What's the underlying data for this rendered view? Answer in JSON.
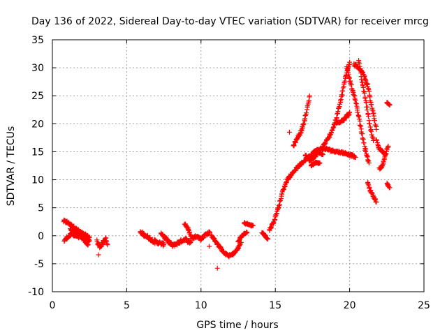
{
  "chart_data": {
    "type": "scatter",
    "title": "Day 136 of 2022, Sidereal Day-to-day VTEC variation (SDTVAR) for receiver mrcg",
    "xlabel": "GPS time / hours",
    "ylabel": "SDTVAR / TECUs",
    "xlim": [
      0,
      25
    ],
    "ylim": [
      -10,
      35
    ],
    "xticks": [
      0,
      5,
      10,
      15,
      20,
      25
    ],
    "yticks": [
      -10,
      -5,
      0,
      5,
      10,
      15,
      20,
      25,
      30,
      35
    ],
    "xtick_labels": [
      "0",
      "5",
      "10",
      "15",
      "20",
      "25"
    ],
    "ytick_labels": [
      "-10",
      "-5",
      "0",
      "5",
      "10",
      "15",
      "20",
      "25",
      "30",
      "35"
    ],
    "grid": true,
    "marker": "+",
    "marker_color": "#ff0000",
    "segments": [
      {
        "name": "arc-a",
        "x": [
          0.75,
          1.0,
          1.3,
          1.6,
          1.9,
          2.2,
          2.5
        ],
        "y": [
          2.6,
          2.4,
          1.8,
          1.2,
          0.6,
          0.1,
          -0.3
        ],
        "jitter": 0.5
      },
      {
        "name": "arc-a2",
        "x": [
          0.8,
          1.0,
          1.3,
          1.6,
          1.9,
          2.2,
          2.5
        ],
        "y": [
          -0.9,
          -0.3,
          0.3,
          0.0,
          -0.3,
          -0.6,
          -0.9
        ],
        "jitter": 0.5
      },
      {
        "name": "arc-a3",
        "x": [
          1.2,
          1.5,
          1.8,
          2.1,
          2.4
        ],
        "y": [
          1.2,
          0.8,
          0.4,
          -0.6,
          -1.6
        ],
        "jitter": 0.4
      },
      {
        "name": "arc-b",
        "x": [
          3.0,
          3.2,
          3.4,
          3.6,
          3.7
        ],
        "y": [
          -1.0,
          -2.0,
          -1.2,
          -0.6,
          -1.6
        ],
        "jitter": 0.6
      },
      {
        "name": "arc-c",
        "x": [
          5.9,
          6.3,
          6.7,
          7.1,
          7.5
        ],
        "y": [
          0.6,
          0.0,
          -0.8,
          -1.2,
          -1.6
        ],
        "jitter": 0.6
      },
      {
        "name": "arc-d",
        "x": [
          7.3,
          7.7,
          8.1,
          8.5,
          8.9,
          9.3
        ],
        "y": [
          0.6,
          -0.8,
          -1.8,
          -1.2,
          -0.6,
          -1.2
        ],
        "jitter": 0.6
      },
      {
        "name": "arc-e",
        "x": [
          8.9,
          9.1,
          9.4,
          9.7,
          10.0,
          10.3,
          10.6
        ],
        "y": [
          2.2,
          1.4,
          -0.5,
          0.0,
          -0.6,
          0.2,
          0.6
        ],
        "jitter": 0.5
      },
      {
        "name": "arc-f",
        "x": [
          10.7,
          11.0,
          11.3,
          11.6,
          11.9,
          12.2,
          12.5,
          12.7
        ],
        "y": [
          0.0,
          -1.0,
          -2.2,
          -3.2,
          -3.6,
          -3.2,
          -2.2,
          -1.2
        ],
        "jitter": 0.4
      },
      {
        "name": "arc-g",
        "x": [
          12.5,
          12.7,
          12.9,
          13.1
        ],
        "y": [
          -1.0,
          -0.2,
          0.3,
          0.6
        ],
        "jitter": 0.3
      },
      {
        "name": "arc-h",
        "x": [
          12.9,
          13.2,
          13.5
        ],
        "y": [
          2.3,
          2.0,
          1.8
        ],
        "jitter": 0.3
      },
      {
        "name": "arc-i",
        "x": [
          14.1,
          14.3,
          14.5
        ],
        "y": [
          0.6,
          0.0,
          -0.6
        ],
        "jitter": 0.4
      },
      {
        "name": "rise-main",
        "x": [
          14.6,
          14.9,
          15.2,
          15.5,
          15.8,
          16.1,
          16.4,
          16.8,
          17.2,
          17.6,
          18.0,
          18.4,
          18.8,
          19.2,
          19.6,
          20.0,
          20.4
        ],
        "y": [
          1.0,
          2.5,
          5.0,
          8.0,
          10.0,
          11.0,
          12.0,
          13.0,
          14.0,
          15.0,
          15.5,
          15.5,
          15.2,
          15.0,
          14.8,
          14.5,
          14.0
        ],
        "jitter": 0.4
      },
      {
        "name": "arc-j",
        "x": [
          16.2,
          16.5,
          16.8,
          17.1,
          17.3
        ],
        "y": [
          16.0,
          17.5,
          19.0,
          22.0,
          25.0
        ],
        "jitter": 0.5
      },
      {
        "name": "arc-k",
        "x": [
          17.0,
          17.3,
          17.6,
          17.9,
          18.2
        ],
        "y": [
          14.5,
          13.5,
          14.0,
          15.0,
          14.5
        ],
        "jitter": 0.5
      },
      {
        "name": "arc-l",
        "x": [
          17.4,
          17.7,
          18.0
        ],
        "y": [
          12.5,
          13.0,
          13.0
        ],
        "jitter": 0.3
      },
      {
        "name": "arc-m",
        "x": [
          18.2,
          18.6,
          19.0,
          19.4,
          19.7,
          20.0
        ],
        "y": [
          16.0,
          17.5,
          20.0,
          24.0,
          28.0,
          31.0
        ],
        "jitter": 0.5
      },
      {
        "name": "arc-n",
        "x": [
          19.1,
          19.4,
          19.7,
          20.0
        ],
        "y": [
          20.0,
          20.5,
          21.0,
          22.0
        ],
        "jitter": 0.5
      },
      {
        "name": "arc-o",
        "x": [
          19.8,
          20.1,
          20.4,
          20.7,
          21.0,
          21.3
        ],
        "y": [
          30.0,
          27.0,
          24.0,
          20.0,
          16.0,
          13.0
        ],
        "jitter": 0.5
      },
      {
        "name": "arc-p",
        "x": [
          20.3,
          20.6,
          20.9,
          21.2,
          21.5,
          21.8
        ],
        "y": [
          30.5,
          30.0,
          29.0,
          27.0,
          23.0,
          19.0
        ],
        "jitter": 0.5
      },
      {
        "name": "arc-q",
        "x": [
          20.6,
          20.8,
          21.1,
          21.4,
          21.6
        ],
        "y": [
          31.5,
          28.0,
          24.0,
          19.0,
          17.0
        ],
        "jitter": 0.5
      },
      {
        "name": "arc-r",
        "x": [
          21.2,
          21.4,
          21.6,
          21.8
        ],
        "y": [
          9.5,
          8.0,
          7.0,
          6.0
        ],
        "jitter": 0.5
      },
      {
        "name": "arc-s",
        "x": [
          21.8,
          22.0,
          22.2,
          22.4
        ],
        "y": [
          17.0,
          15.5,
          15.0,
          14.5
        ],
        "jitter": 0.5
      },
      {
        "name": "arc-t",
        "x": [
          22.0,
          22.2,
          22.4,
          22.6
        ],
        "y": [
          12.0,
          12.5,
          14.5,
          16.0
        ],
        "jitter": 0.4
      },
      {
        "name": "arc-u",
        "x": [
          22.5,
          22.7
        ],
        "y": [
          23.8,
          23.4
        ],
        "jitter": 0.3
      },
      {
        "name": "arc-v",
        "x": [
          22.5,
          22.7
        ],
        "y": [
          9.3,
          8.6
        ],
        "jitter": 0.3
      }
    ],
    "isolated_points": [
      {
        "x": 15.95,
        "y": 18.5
      },
      {
        "x": 10.55,
        "y": -1.9
      },
      {
        "x": 11.1,
        "y": -5.8
      },
      {
        "x": 3.1,
        "y": -3.4
      },
      {
        "x": 6.9,
        "y": -1.4
      }
    ]
  }
}
